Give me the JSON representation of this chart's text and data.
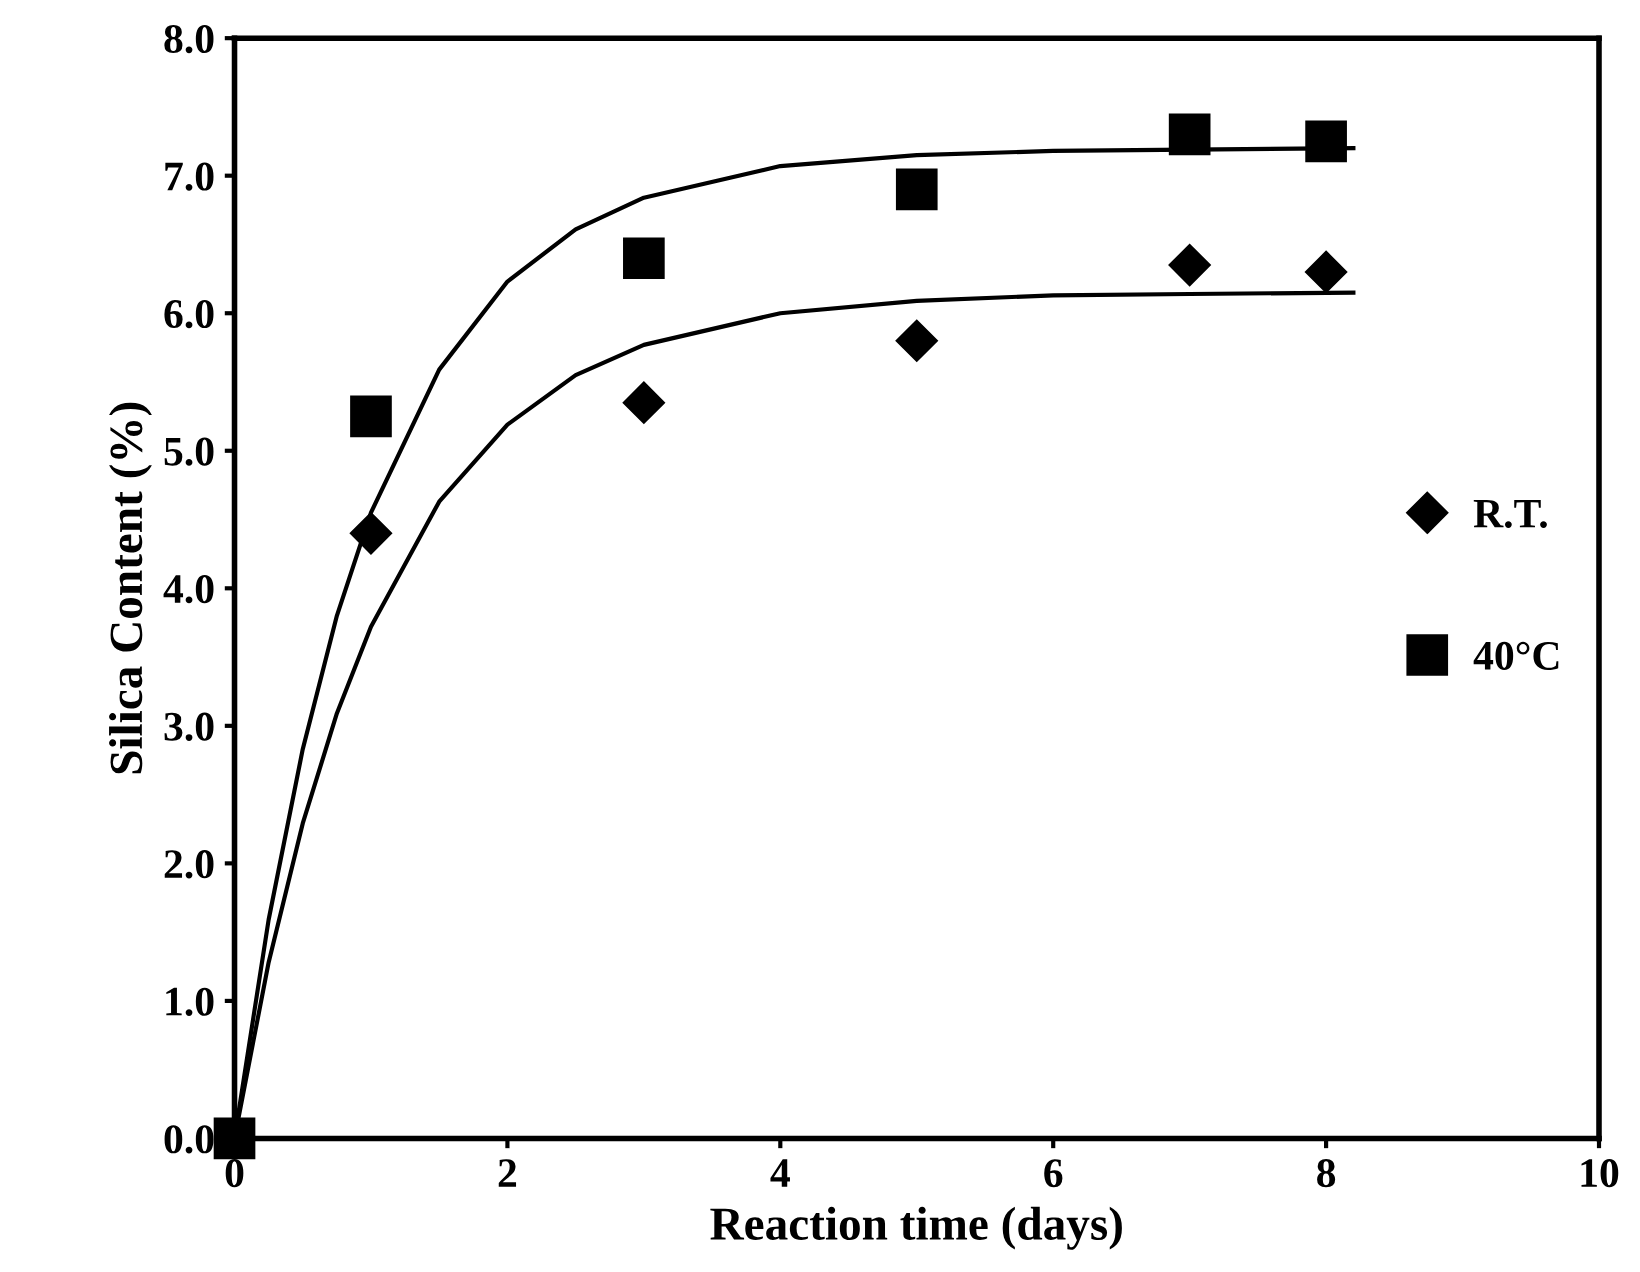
{
  "chart_data": {
    "type": "scatter",
    "xlabel": "Reaction time (days)",
    "ylabel": "Silica Content (%)",
    "xlim": [
      0,
      10
    ],
    "ylim": [
      0,
      8
    ],
    "xticks": [
      0,
      2,
      4,
      6,
      8,
      10
    ],
    "yticks": [
      {
        "value": 0,
        "label": "0.0"
      },
      {
        "value": 1,
        "label": "1.0"
      },
      {
        "value": 2,
        "label": "2.0"
      },
      {
        "value": 3,
        "label": "3.0"
      },
      {
        "value": 4,
        "label": "4.0"
      },
      {
        "value": 5,
        "label": "5.0"
      },
      {
        "value": 6,
        "label": "6.0"
      },
      {
        "value": 7,
        "label": "7.0"
      },
      {
        "value": 8,
        "label": "8.0"
      }
    ],
    "grid": false,
    "legend": "right",
    "series": [
      {
        "name": "R.T.",
        "marker": "diamond",
        "color": "#000000",
        "x": [
          1,
          3,
          5,
          7,
          8
        ],
        "values": [
          4.4,
          5.35,
          5.8,
          6.35,
          6.3
        ]
      },
      {
        "name": "40°C",
        "marker": "square",
        "color": "#000000",
        "x": [
          0,
          1,
          3,
          5,
          7,
          8
        ],
        "values": [
          0,
          5.25,
          6.4,
          6.9,
          7.3,
          7.25
        ]
      },
      {
        "type": "line",
        "color": "#000000",
        "line_style": "solid",
        "x": [
          0,
          0.25,
          0.5,
          0.75,
          1,
          1.5,
          2,
          2.5,
          3,
          4,
          5,
          6,
          7,
          8.2
        ],
        "values": [
          0,
          1.28,
          2.29,
          3.09,
          3.72,
          4.63,
          5.19,
          5.55,
          5.77,
          6.0,
          6.09,
          6.13,
          6.14,
          6.15
        ]
      },
      {
        "type": "line",
        "color": "#000000",
        "line_style": "solid",
        "x": [
          0,
          0.25,
          0.5,
          0.75,
          1,
          1.5,
          2,
          2.5,
          3,
          4,
          5,
          6,
          7,
          8.2
        ],
        "values": [
          0,
          1.59,
          2.83,
          3.8,
          4.55,
          5.59,
          6.23,
          6.61,
          6.84,
          7.07,
          7.15,
          7.18,
          7.19,
          7.2
        ]
      }
    ]
  }
}
